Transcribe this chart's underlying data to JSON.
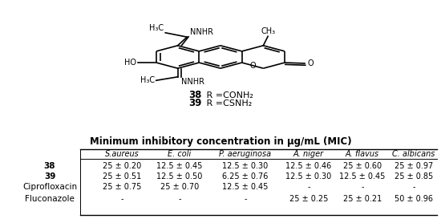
{
  "title": "Minimum inhibitory concentration in μg/mL (MIC)",
  "row_labels": [
    "38",
    "39",
    "Ciprofloxacin",
    "Fluconazole"
  ],
  "col_labels": [
    "S.aureus",
    "E. coli",
    "P. aeruginosa",
    "A. niger",
    "A. flavus",
    "C. albicans"
  ],
  "table_data": [
    [
      "25 ± 0.20",
      "12.5 ± 0.45",
      "12.5 ± 0.30",
      "12.5 ± 0.46",
      "25 ± 0.60",
      "25 ± 0.97"
    ],
    [
      "25 ± 0.51",
      "12.5 ± 0.50",
      "6.25 ± 0.76",
      "12.5 ± 0.30",
      "12.5 ± 0.45",
      "25 ± 0.85"
    ],
    [
      "25 ± 0.75",
      "25 ± 0.70",
      "12.5 ± 0.45",
      "-",
      "-",
      "-"
    ],
    [
      "-",
      "-",
      "-",
      "25 ± 0.25",
      "25 ± 0.21",
      "50 ± 0.96"
    ]
  ],
  "bg_color": "#ffffff"
}
